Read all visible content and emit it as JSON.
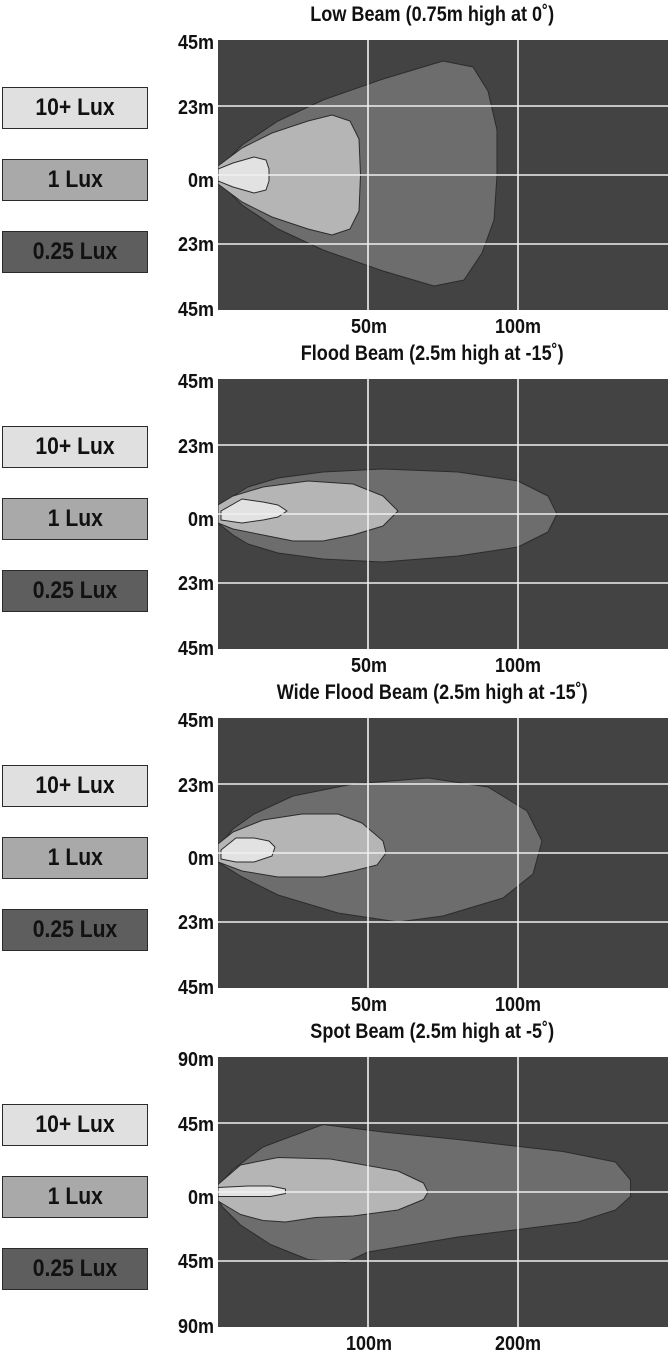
{
  "legend": [
    {
      "label": "10+ Lux",
      "color": "#e0e0e0"
    },
    {
      "label": "1 Lux",
      "color": "#a9a9a9"
    },
    {
      "label": "0.25 Lux",
      "color": "#5e5e5e"
    }
  ],
  "colors": {
    "plot_background": "#434343",
    "zone_025": "#6d6d6d",
    "zone_1": "#b5b5b5",
    "zone_10": "#e2e2e2",
    "grid": "#f0f0f0",
    "zone_outline": "#2c2c2c"
  },
  "chart_data": [
    {
      "type": "area",
      "title": "Low Beam (0.75m high at 0˚)",
      "x_ticks": [
        "50m",
        "100m"
      ],
      "x_tick_values": [
        50,
        100
      ],
      "y_ticks": [
        "45m",
        "23m",
        "0m",
        "23m",
        "45m"
      ],
      "xlim": [
        0,
        150
      ],
      "ylim": [
        -45,
        45
      ],
      "grid": true,
      "series": [
        {
          "name": "0.25 Lux",
          "outline": [
            [
              0,
              2
            ],
            [
              8,
              10
            ],
            [
              20,
              18
            ],
            [
              35,
              25
            ],
            [
              55,
              32
            ],
            [
              75,
              38
            ],
            [
              85,
              36
            ],
            [
              90,
              28
            ],
            [
              93,
              15
            ],
            [
              93,
              0
            ],
            [
              92,
              -15
            ],
            [
              88,
              -26
            ],
            [
              82,
              -35
            ],
            [
              72,
              -37
            ],
            [
              55,
              -32
            ],
            [
              35,
              -25
            ],
            [
              20,
              -18
            ],
            [
              8,
              -10
            ],
            [
              0,
              -2
            ]
          ]
        },
        {
          "name": "1 Lux",
          "outline": [
            [
              0,
              3
            ],
            [
              8,
              9
            ],
            [
              18,
              14
            ],
            [
              30,
              18
            ],
            [
              38,
              20
            ],
            [
              44,
              18
            ],
            [
              47,
              12
            ],
            [
              47.5,
              0
            ],
            [
              47,
              -12
            ],
            [
              44,
              -18
            ],
            [
              38,
              -20
            ],
            [
              30,
              -18
            ],
            [
              18,
              -14
            ],
            [
              8,
              -9
            ],
            [
              0,
              -3
            ]
          ]
        },
        {
          "name": "10+ Lux",
          "outline": [
            [
              0,
              2
            ],
            [
              5,
              4
            ],
            [
              12,
              6
            ],
            [
              16,
              5
            ],
            [
              17,
              2
            ],
            [
              17,
              -2
            ],
            [
              16,
              -5
            ],
            [
              12,
              -6
            ],
            [
              5,
              -4
            ],
            [
              0,
              -2
            ]
          ]
        }
      ]
    },
    {
      "type": "area",
      "title": "Flood Beam (2.5m high at -15˚)",
      "x_ticks": [
        "50m",
        "100m"
      ],
      "x_tick_values": [
        50,
        100
      ],
      "y_ticks": [
        "45m",
        "23m",
        "0m",
        "23m",
        "45m"
      ],
      "xlim": [
        0,
        150
      ],
      "ylim": [
        -45,
        45
      ],
      "grid": true,
      "series": [
        {
          "name": "0.25 Lux",
          "outline": [
            [
              0,
              2
            ],
            [
              5,
              6
            ],
            [
              10,
              9
            ],
            [
              20,
              12
            ],
            [
              35,
              14
            ],
            [
              55,
              15
            ],
            [
              80,
              14
            ],
            [
              100,
              11
            ],
            [
              110,
              6
            ],
            [
              113,
              0
            ],
            [
              110,
              -6
            ],
            [
              100,
              -11
            ],
            [
              80,
              -14
            ],
            [
              55,
              -16
            ],
            [
              35,
              -15
            ],
            [
              20,
              -13
            ],
            [
              10,
              -10
            ],
            [
              5,
              -7
            ],
            [
              0,
              -3
            ]
          ]
        },
        {
          "name": "1 Lux",
          "outline": [
            [
              0,
              3
            ],
            [
              5,
              6
            ],
            [
              15,
              9
            ],
            [
              30,
              11
            ],
            [
              45,
              10
            ],
            [
              55,
              6
            ],
            [
              60,
              1
            ],
            [
              55,
              -4
            ],
            [
              45,
              -7
            ],
            [
              35,
              -9
            ],
            [
              25,
              -9
            ],
            [
              15,
              -7
            ],
            [
              5,
              -5
            ],
            [
              0,
              -3
            ]
          ]
        },
        {
          "name": "10+ Lux",
          "outline": [
            [
              1,
              1
            ],
            [
              8,
              5
            ],
            [
              15,
              4
            ],
            [
              20,
              3
            ],
            [
              23,
              1
            ],
            [
              20,
              -1
            ],
            [
              15,
              -2
            ],
            [
              8,
              -3
            ],
            [
              1,
              -2
            ]
          ]
        }
      ]
    },
    {
      "type": "area",
      "title": "Wide Flood Beam (2.5m high at -15˚)",
      "x_ticks": [
        "50m",
        "100m"
      ],
      "x_tick_values": [
        50,
        100
      ],
      "y_ticks": [
        "45m",
        "23m",
        "0m",
        "23m",
        "45m"
      ],
      "xlim": [
        0,
        150
      ],
      "ylim": [
        -45,
        45
      ],
      "grid": true,
      "series": [
        {
          "name": "0.25 Lux",
          "outline": [
            [
              0,
              2
            ],
            [
              5,
              8
            ],
            [
              12,
              13
            ],
            [
              25,
              19
            ],
            [
              45,
              23
            ],
            [
              70,
              25
            ],
            [
              90,
              22
            ],
            [
              103,
              14
            ],
            [
              108,
              4
            ],
            [
              105,
              -7
            ],
            [
              95,
              -15
            ],
            [
              75,
              -21
            ],
            [
              60,
              -23
            ],
            [
              40,
              -20
            ],
            [
              20,
              -14
            ],
            [
              8,
              -8
            ],
            [
              0,
              -3
            ]
          ]
        },
        {
          "name": "1 Lux",
          "outline": [
            [
              0,
              3
            ],
            [
              5,
              7
            ],
            [
              15,
              11
            ],
            [
              28,
              13
            ],
            [
              40,
              13
            ],
            [
              48,
              10
            ],
            [
              55,
              4
            ],
            [
              56,
              0
            ],
            [
              53,
              -4
            ],
            [
              45,
              -6
            ],
            [
              35,
              -8
            ],
            [
              20,
              -8
            ],
            [
              8,
              -6
            ],
            [
              0,
              -3
            ]
          ]
        },
        {
          "name": "10+ Lux",
          "outline": [
            [
              1,
              1
            ],
            [
              6,
              5
            ],
            [
              12,
              5
            ],
            [
              17,
              4
            ],
            [
              19,
              2
            ],
            [
              18,
              -1
            ],
            [
              12,
              -3
            ],
            [
              6,
              -3
            ],
            [
              1,
              -2
            ]
          ]
        }
      ]
    },
    {
      "type": "area",
      "title": "Spot Beam (2.5m high at -5˚)",
      "x_ticks": [
        "100m",
        "200m"
      ],
      "x_tick_values": [
        100,
        200
      ],
      "y_ticks": [
        "90m",
        "45m",
        "0m",
        "45m",
        "90m"
      ],
      "xlim": [
        0,
        300
      ],
      "ylim": [
        -90,
        90
      ],
      "grid": true,
      "series": [
        {
          "name": "0.25 Lux",
          "outline": [
            [
              0,
              4
            ],
            [
              10,
              15
            ],
            [
              30,
              30
            ],
            [
              70,
              45
            ],
            [
              110,
              40
            ],
            [
              160,
              35
            ],
            [
              230,
              27
            ],
            [
              265,
              20
            ],
            [
              275,
              8
            ],
            [
              275,
              -3
            ],
            [
              265,
              -12
            ],
            [
              240,
              -20
            ],
            [
              200,
              -25
            ],
            [
              160,
              -30
            ],
            [
              100,
              -40
            ],
            [
              85,
              -47
            ],
            [
              60,
              -45
            ],
            [
              35,
              -35
            ],
            [
              15,
              -22
            ],
            [
              3,
              -10
            ],
            [
              0,
              -5
            ]
          ]
        },
        {
          "name": "1 Lux",
          "outline": [
            [
              0,
              5
            ],
            [
              15,
              18
            ],
            [
              40,
              23
            ],
            [
              75,
              22
            ],
            [
              120,
              14
            ],
            [
              137,
              6
            ],
            [
              140,
              0
            ],
            [
              137,
              -5
            ],
            [
              120,
              -12
            ],
            [
              90,
              -16
            ],
            [
              65,
              -17
            ],
            [
              45,
              -20
            ],
            [
              30,
              -19
            ],
            [
              15,
              -15
            ],
            [
              5,
              -9
            ],
            [
              0,
              -6
            ]
          ]
        },
        {
          "name": "10+ Lux",
          "outline": [
            [
              0,
              3
            ],
            [
              20,
              4
            ],
            [
              35,
              4
            ],
            [
              45,
              2
            ],
            [
              45,
              -1
            ],
            [
              35,
              -3
            ],
            [
              20,
              -3
            ],
            [
              0,
              -3
            ]
          ]
        }
      ]
    }
  ]
}
